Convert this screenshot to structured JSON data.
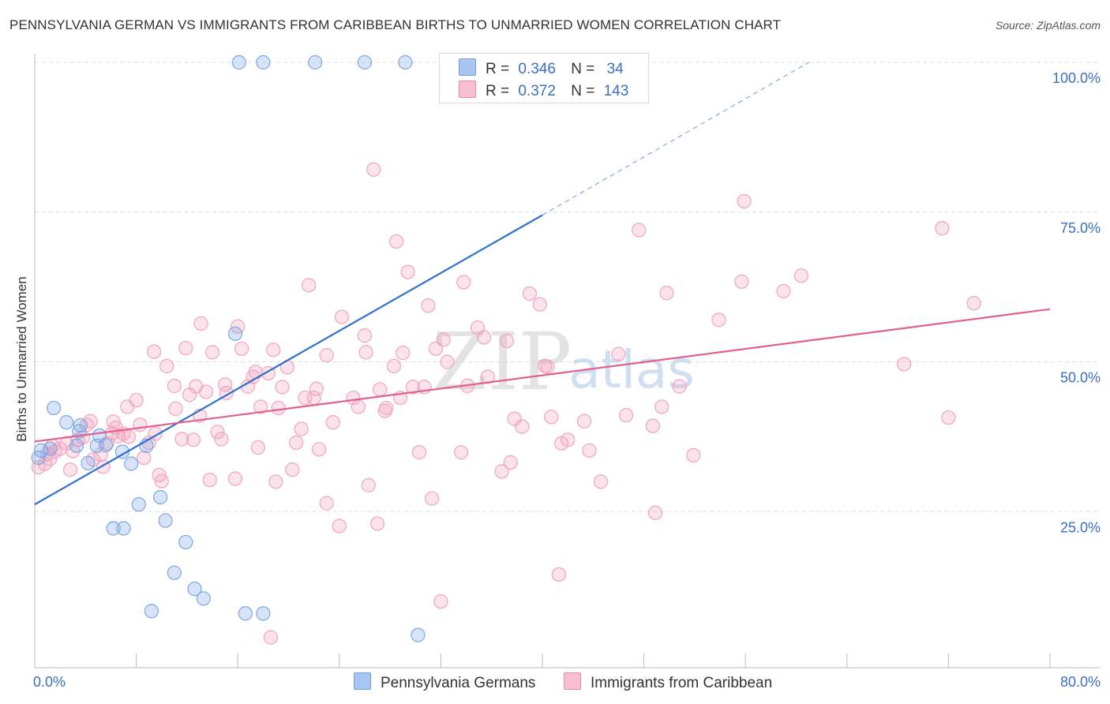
{
  "chart_data": {
    "type": "scatter",
    "title": "PENNSYLVANIA GERMAN VS IMMIGRANTS FROM CARIBBEAN BIRTHS TO UNMARRIED WOMEN CORRELATION CHART",
    "source": "Source: ZipAtlas.com",
    "xlabel": "",
    "ylabel": "Births to Unmarried Women",
    "xlim": [
      0,
      80
    ],
    "ylim": [
      0,
      100
    ],
    "x_tick_labels": {
      "min": "0.0%",
      "max": "80.0%"
    },
    "y_tick_labels": [
      "25.0%",
      "50.0%",
      "75.0%",
      "100.0%"
    ],
    "y_tick_values": [
      25,
      50,
      75,
      100
    ],
    "grid": true,
    "watermark": {
      "zip": "ZIP",
      "atlas": "atlas"
    },
    "legend": [
      {
        "r_label": "R =",
        "r": "0.346",
        "n_label": "N =",
        "n": "34",
        "color": "#a9c6f0",
        "border": "#6f9fe0"
      },
      {
        "r_label": "R =",
        "r": "0.372",
        "n_label": "N =",
        "n": "143",
        "color": "#f7bfd1",
        "border": "#ea8aaa"
      }
    ],
    "series": [
      {
        "name": "Pennsylvania Germans",
        "color": "#7ba7e6",
        "line_color": "#2f6fcf",
        "trend": {
          "x0": 0,
          "y0": 26.2,
          "x1": 40,
          "y1": 74.5,
          "dash_to_x": 61,
          "dash_to_y": 100
        },
        "points": [
          [
            0.5,
            35.2
          ],
          [
            1.2,
            35.5
          ],
          [
            0.3,
            34.0
          ],
          [
            1.5,
            42.3
          ],
          [
            3.5,
            38.4
          ],
          [
            3.6,
            39.4
          ],
          [
            3.3,
            36.0
          ],
          [
            4.9,
            36.0
          ],
          [
            5.6,
            36.1
          ],
          [
            6.9,
            35.0
          ],
          [
            5.1,
            37.7
          ],
          [
            2.5,
            39.9
          ],
          [
            7.6,
            33.0
          ],
          [
            4.2,
            33.1
          ],
          [
            8.8,
            36.0
          ],
          [
            8.2,
            26.2
          ],
          [
            9.9,
            27.4
          ],
          [
            10.3,
            23.5
          ],
          [
            7.0,
            22.2
          ],
          [
            6.2,
            22.2
          ],
          [
            11.9,
            19.9
          ],
          [
            11.0,
            14.8
          ],
          [
            12.6,
            12.1
          ],
          [
            13.3,
            10.5
          ],
          [
            9.2,
            8.4
          ],
          [
            16.6,
            8.0
          ],
          [
            18.0,
            8.0
          ],
          [
            30.2,
            4.4
          ],
          [
            15.8,
            54.7
          ],
          [
            16.1,
            100
          ],
          [
            18.0,
            100
          ],
          [
            22.1,
            100
          ],
          [
            26.0,
            100
          ],
          [
            29.2,
            100
          ]
        ]
      },
      {
        "name": "Immigrants from Caribbean",
        "color": "#f2a3bd",
        "line_color": "#e0608e",
        "trend": {
          "x0": 0,
          "y0": 36.7,
          "x1": 80,
          "y1": 58.8
        },
        "points": [
          [
            0.3,
            32.4
          ],
          [
            0.8,
            33.0
          ],
          [
            1.2,
            33.8
          ],
          [
            1.0,
            34.6
          ],
          [
            1.6,
            35.0
          ],
          [
            2.0,
            35.5
          ],
          [
            1.4,
            36.0
          ],
          [
            2.5,
            36.4
          ],
          [
            3.0,
            35.1
          ],
          [
            2.8,
            32.0
          ],
          [
            3.4,
            37.0
          ],
          [
            3.8,
            37.4
          ],
          [
            4.1,
            39.5
          ],
          [
            4.4,
            40.1
          ],
          [
            4.6,
            33.7
          ],
          [
            5.2,
            34.5
          ],
          [
            5.7,
            36.4
          ],
          [
            5.4,
            32.5
          ],
          [
            6.1,
            38.1
          ],
          [
            6.6,
            37.6
          ],
          [
            6.4,
            39.0
          ],
          [
            6.2,
            40.0
          ],
          [
            7.0,
            38.0
          ],
          [
            7.4,
            37.5
          ],
          [
            7.3,
            42.5
          ],
          [
            8.0,
            43.6
          ],
          [
            8.3,
            39.5
          ],
          [
            8.6,
            34.0
          ],
          [
            9.0,
            36.5
          ],
          [
            9.5,
            38.0
          ],
          [
            9.8,
            31.1
          ],
          [
            10.0,
            30.1
          ],
          [
            9.4,
            51.7
          ],
          [
            10.4,
            49.3
          ],
          [
            11.0,
            46.0
          ],
          [
            11.1,
            42.2
          ],
          [
            11.6,
            37.1
          ],
          [
            11.9,
            52.3
          ],
          [
            12.2,
            44.5
          ],
          [
            12.5,
            37.0
          ],
          [
            12.7,
            45.9
          ],
          [
            13.0,
            41.0
          ],
          [
            13.1,
            56.4
          ],
          [
            13.5,
            45.0
          ],
          [
            13.8,
            30.3
          ],
          [
            14.0,
            51.6
          ],
          [
            14.4,
            38.3
          ],
          [
            14.7,
            37.1
          ],
          [
            15.0,
            46.2
          ],
          [
            15.1,
            44.8
          ],
          [
            15.8,
            30.5
          ],
          [
            16.0,
            55.9
          ],
          [
            16.3,
            52.2
          ],
          [
            16.8,
            45.9
          ],
          [
            17.2,
            47.5
          ],
          [
            17.4,
            48.3
          ],
          [
            17.6,
            35.7
          ],
          [
            17.8,
            42.5
          ],
          [
            18.4,
            48.1
          ],
          [
            18.8,
            52.0
          ],
          [
            19.0,
            30.0
          ],
          [
            19.2,
            42.3
          ],
          [
            19.5,
            45.8
          ],
          [
            19.9,
            49.1
          ],
          [
            20.3,
            32.0
          ],
          [
            20.6,
            36.5
          ],
          [
            21.0,
            38.8
          ],
          [
            21.3,
            44.0
          ],
          [
            21.6,
            62.8
          ],
          [
            22.0,
            44.0
          ],
          [
            22.2,
            45.5
          ],
          [
            22.4,
            35.4
          ],
          [
            23.0,
            51.1
          ],
          [
            23.0,
            26.4
          ],
          [
            23.5,
            39.9
          ],
          [
            24.0,
            22.6
          ],
          [
            24.2,
            57.5
          ],
          [
            25.1,
            44.0
          ],
          [
            25.5,
            42.5
          ],
          [
            26.0,
            54.4
          ],
          [
            26.1,
            51.6
          ],
          [
            26.3,
            29.4
          ],
          [
            26.7,
            82.1
          ],
          [
            27.0,
            23.0
          ],
          [
            27.2,
            45.4
          ],
          [
            27.6,
            41.8
          ],
          [
            27.7,
            42.3
          ],
          [
            28.3,
            49.3
          ],
          [
            28.5,
            70.1
          ],
          [
            28.8,
            44.0
          ],
          [
            29.0,
            51.5
          ],
          [
            29.4,
            65.0
          ],
          [
            29.8,
            45.8
          ],
          [
            30.3,
            34.9
          ],
          [
            30.7,
            45.8
          ],
          [
            31.0,
            59.4
          ],
          [
            31.3,
            27.2
          ],
          [
            31.6,
            52.2
          ],
          [
            32.0,
            10.0
          ],
          [
            32.2,
            53.7
          ],
          [
            32.5,
            50.0
          ],
          [
            33.6,
            34.9
          ],
          [
            33.8,
            63.3
          ],
          [
            34.1,
            46.0
          ],
          [
            34.9,
            55.7
          ],
          [
            35.4,
            54.1
          ],
          [
            35.7,
            47.5
          ],
          [
            36.8,
            31.7
          ],
          [
            37.5,
            33.2
          ],
          [
            37.2,
            53.5
          ],
          [
            37.8,
            40.5
          ],
          [
            38.4,
            39.2
          ],
          [
            39.0,
            61.4
          ],
          [
            39.8,
            59.6
          ],
          [
            40.2,
            49.3
          ],
          [
            40.4,
            49.2
          ],
          [
            40.7,
            40.8
          ],
          [
            41.3,
            14.5
          ],
          [
            41.5,
            36.4
          ],
          [
            42.0,
            37.0
          ],
          [
            43.3,
            40.1
          ],
          [
            43.7,
            35.2
          ],
          [
            44.6,
            30.0
          ],
          [
            46.0,
            51.3
          ],
          [
            46.6,
            41.1
          ],
          [
            47.6,
            72.0
          ],
          [
            48.7,
            39.3
          ],
          [
            48.9,
            24.8
          ],
          [
            49.4,
            42.5
          ],
          [
            49.8,
            61.5
          ],
          [
            50.8,
            45.9
          ],
          [
            51.9,
            34.4
          ],
          [
            53.9,
            57.0
          ],
          [
            55.7,
            63.4
          ],
          [
            55.9,
            76.8
          ],
          [
            59.0,
            61.8
          ],
          [
            60.4,
            64.4
          ],
          [
            68.5,
            49.6
          ],
          [
            71.5,
            72.3
          ],
          [
            72.0,
            40.7
          ],
          [
            74.0,
            59.8
          ],
          [
            18.6,
            4.0
          ]
        ]
      }
    ]
  }
}
